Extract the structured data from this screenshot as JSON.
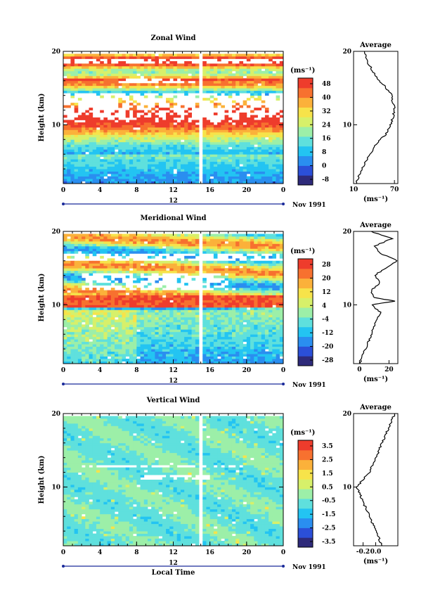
{
  "palette": [
    "#2e2a7a",
    "#2b4fd8",
    "#2a8ef0",
    "#23c4f2",
    "#5fe0dd",
    "#9cefa8",
    "#d7f06a",
    "#f7e34a",
    "#fbb13a",
    "#f7712f",
    "#ee3c2c"
  ],
  "chart_data": [
    {
      "type": "heatmap",
      "title": "Zonal Wind",
      "xlabel": "",
      "ylabel": "Height (km)",
      "x_ticks": [
        "0",
        "4",
        "8",
        "12",
        "16",
        "20",
        "0"
      ],
      "y_ticks": [
        "10",
        "20"
      ],
      "xlim": [
        0,
        24
      ],
      "ylim": [
        2,
        20
      ],
      "date_axis_ticks": [
        "12"
      ],
      "date_label": "Nov 1991",
      "colorbar_unit": "(ms⁻¹)",
      "colorbar_ticks": [
        "48",
        "40",
        "32",
        "24",
        "16",
        "8",
        "0",
        "-8"
      ],
      "colorbar_range": [
        -12,
        52
      ],
      "profile": [
        [
          2,
          14
        ],
        [
          3,
          18
        ],
        [
          4,
          22
        ],
        [
          5,
          28
        ],
        [
          6,
          34
        ],
        [
          7,
          40
        ],
        [
          8,
          50
        ],
        [
          9,
          60
        ],
        [
          10,
          64
        ],
        [
          11,
          68
        ],
        [
          12,
          70
        ],
        [
          13,
          68
        ],
        [
          14,
          66
        ],
        [
          15,
          58
        ],
        [
          16,
          48
        ],
        [
          17,
          40
        ],
        [
          18,
          34
        ],
        [
          19,
          28
        ],
        [
          20,
          26
        ]
      ]
    },
    {
      "type": "heatmap",
      "title": "Meridional Wind",
      "xlabel": "",
      "ylabel": "Height (km)",
      "x_ticks": [
        "0",
        "4",
        "8",
        "12",
        "16",
        "20",
        "0"
      ],
      "y_ticks": [
        "10",
        "20"
      ],
      "xlim": [
        0,
        24
      ],
      "ylim": [
        2,
        20
      ],
      "date_axis_ticks": [
        "12"
      ],
      "date_label": "Nov 1991",
      "colorbar_unit": "(ms⁻¹)",
      "colorbar_ticks": [
        "28",
        "20",
        "12",
        "4",
        "-4",
        "-12",
        "-20",
        "-28"
      ],
      "colorbar_range": [
        -32,
        32
      ],
      "profile": [
        [
          2,
          0
        ],
        [
          3,
          2
        ],
        [
          4,
          4
        ],
        [
          5,
          6
        ],
        [
          6,
          8
        ],
        [
          7,
          10
        ],
        [
          8,
          12
        ],
        [
          9,
          14
        ],
        [
          10,
          8
        ],
        [
          10.5,
          24
        ],
        [
          11,
          10
        ],
        [
          12,
          8
        ],
        [
          13,
          14
        ],
        [
          14,
          10
        ],
        [
          15,
          18
        ],
        [
          16,
          26
        ],
        [
          17,
          14
        ],
        [
          18,
          10
        ],
        [
          19,
          22
        ],
        [
          20,
          8
        ]
      ]
    },
    {
      "type": "heatmap",
      "title": "Vertical Wind",
      "xlabel": "Local Time",
      "ylabel": "Height (km)",
      "x_ticks": [
        "0",
        "4",
        "8",
        "12",
        "16",
        "20",
        "0"
      ],
      "y_ticks": [
        "10",
        "20"
      ],
      "xlim": [
        0,
        24
      ],
      "ylim": [
        2,
        20
      ],
      "date_axis_ticks": [
        "12"
      ],
      "date_label": "Nov 1991",
      "colorbar_unit": "(ms⁻¹)",
      "colorbar_ticks": [
        "3.5",
        "2.5",
        "1.5",
        "0.5",
        "-0.5",
        "-1.5",
        "-2.5",
        "-3.5"
      ],
      "colorbar_range": [
        -4,
        4
      ],
      "profile": [
        [
          2,
          0.1
        ],
        [
          3,
          0.05
        ],
        [
          4,
          0.0
        ],
        [
          5,
          -0.05
        ],
        [
          6,
          -0.1
        ],
        [
          7,
          -0.15
        ],
        [
          8,
          -0.2
        ],
        [
          9,
          -0.25
        ],
        [
          10,
          -0.3
        ],
        [
          11,
          -0.2
        ],
        [
          12,
          -0.1
        ],
        [
          13,
          -0.05
        ],
        [
          14,
          0.0
        ],
        [
          15,
          0.05
        ],
        [
          16,
          0.1
        ],
        [
          17,
          0.15
        ],
        [
          18,
          0.2
        ],
        [
          19,
          0.25
        ],
        [
          20,
          0.3
        ]
      ]
    }
  ],
  "profiles": [
    {
      "title": "Average",
      "unit": "(ms⁻¹)",
      "y_ticks": [
        "10",
        "20"
      ],
      "x_ticks": [
        "10",
        "70"
      ],
      "xlim": [
        10,
        75
      ]
    },
    {
      "title": "Average",
      "unit": "(ms⁻¹)",
      "y_ticks": [
        "10",
        "20"
      ],
      "x_ticks": [
        "0",
        "20"
      ],
      "xlim": [
        -4,
        26
      ]
    },
    {
      "title": "Average",
      "unit": "(ms⁻¹)",
      "y_ticks": [
        "10",
        "20"
      ],
      "x_ticks": [
        "-0.2",
        "0.0"
      ],
      "xlim": [
        -0.35,
        0.35
      ]
    }
  ]
}
